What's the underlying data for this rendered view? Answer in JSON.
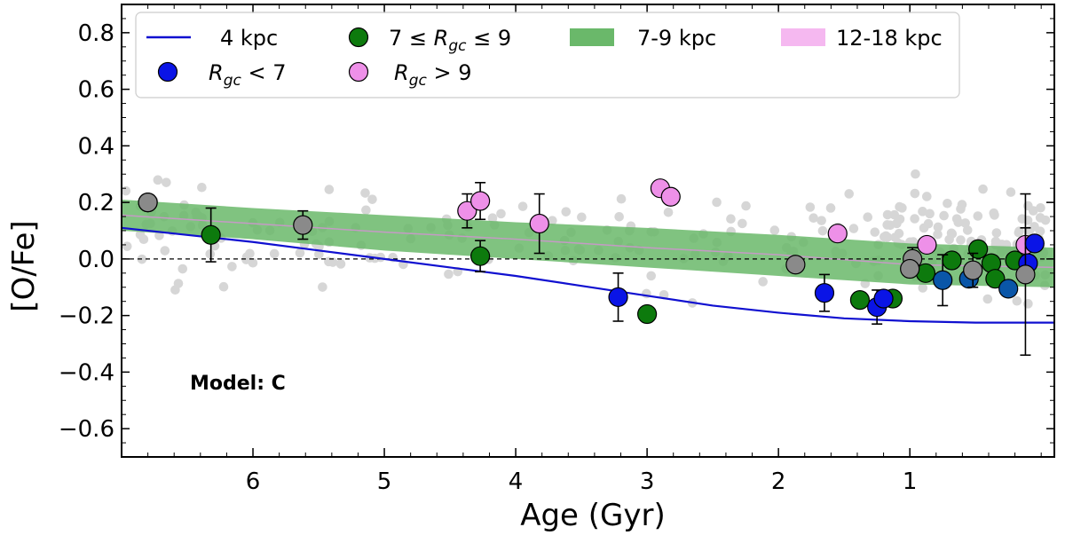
{
  "chart_data": {
    "type": "scatter",
    "xlabel": "Age (Gyr)",
    "ylabel": "[O/Fe]",
    "xlim": [
      7.0,
      -0.1
    ],
    "ylim": [
      -0.7,
      0.9
    ],
    "x_ticks": [
      6,
      5,
      4,
      3,
      2,
      1
    ],
    "x_tick_labels": [
      "6",
      "5",
      "4",
      "3",
      "2",
      "1"
    ],
    "y_ticks": [
      0.8,
      0.6,
      0.4,
      0.2,
      0.0,
      -0.2,
      -0.4,
      -0.6
    ],
    "y_tick_labels": [
      "0.8",
      "0.6",
      "0.4",
      "0.2",
      "0.0",
      "−0.2",
      "−0.4",
      "−0.6"
    ],
    "annotation": "Model: C",
    "reference_line_y": 0.0,
    "legend": {
      "placement": "top",
      "line_4kpc": "4 kpc",
      "inner": "7 ≤ R",
      "inner_suffix": " ≤ 9",
      "band_7_9": "7-9 kpc",
      "band_12_18": "12-18 kpc",
      "lt7_suffix": " < 7",
      "gt9_suffix": " > 9",
      "r_symbol": "R",
      "r_sub": "gc"
    },
    "colors": {
      "line_4kpc": "#1010d0",
      "band_7_9": "#6ab86a",
      "band_7_9_center": "#c59ac5",
      "band_12_18": "#f5b8f0",
      "lt7": "#0a14e6",
      "lt7_alt": "#0a56a8",
      "inner": "#0d7a0d",
      "gt9": "#ee90e8",
      "grey_cluster": "#8a8a8a",
      "background_stars": "#d6d6d6"
    },
    "line_4kpc": {
      "x": [
        7.0,
        6.5,
        6.0,
        5.5,
        5.0,
        4.5,
        4.0,
        3.5,
        3.0,
        2.5,
        2.0,
        1.5,
        1.0,
        0.5,
        -0.1
      ],
      "y": [
        0.11,
        0.085,
        0.06,
        0.03,
        0.0,
        -0.03,
        -0.06,
        -0.095,
        -0.13,
        -0.165,
        -0.19,
        -0.21,
        -0.22,
        -0.225,
        -0.225
      ]
    },
    "band_7_9": {
      "x": [
        7.0,
        6.0,
        5.0,
        4.0,
        3.0,
        2.0,
        1.0,
        -0.1
      ],
      "upper": [
        0.21,
        0.18,
        0.155,
        0.13,
        0.11,
        0.085,
        0.055,
        0.04
      ],
      "lower": [
        0.1,
        0.07,
        0.03,
        0.0,
        -0.03,
        -0.06,
        -0.09,
        -0.1
      ],
      "center": [
        0.155,
        0.125,
        0.095,
        0.07,
        0.04,
        0.015,
        -0.02,
        -0.03
      ]
    },
    "series_lt7": [
      {
        "x": 3.22,
        "y": -0.135,
        "err": 0.085
      },
      {
        "x": 1.65,
        "y": -0.12,
        "err": 0.065
      },
      {
        "x": 1.25,
        "y": -0.17,
        "err": 0.06
      },
      {
        "x": 1.2,
        "y": -0.14,
        "err": 0.0
      },
      {
        "x": 0.05,
        "y": 0.055,
        "err": 0.0
      },
      {
        "x": 0.1,
        "y": -0.015,
        "err": 0.0
      }
    ],
    "series_lt7_alt": [
      {
        "x": 0.75,
        "y": -0.075,
        "err": 0.09
      },
      {
        "x": 0.55,
        "y": -0.07,
        "err": 0.0
      },
      {
        "x": 0.25,
        "y": -0.105,
        "err": 0.0
      }
    ],
    "series_inner": [
      {
        "x": 6.32,
        "y": 0.085,
        "err": 0.095
      },
      {
        "x": 4.27,
        "y": 0.01,
        "err": 0.055
      },
      {
        "x": 3.0,
        "y": -0.195,
        "err": 0.0
      },
      {
        "x": 1.38,
        "y": -0.145,
        "err": 0.0
      },
      {
        "x": 1.13,
        "y": -0.14,
        "err": 0.0
      },
      {
        "x": 0.88,
        "y": -0.05,
        "err": 0.0
      },
      {
        "x": 0.68,
        "y": -0.005,
        "err": 0.0
      },
      {
        "x": 0.48,
        "y": 0.035,
        "err": 0.0
      },
      {
        "x": 0.38,
        "y": -0.015,
        "err": 0.0
      },
      {
        "x": 0.35,
        "y": -0.07,
        "err": 0.0
      },
      {
        "x": 0.2,
        "y": -0.005,
        "err": 0.0
      }
    ],
    "series_gt9": [
      {
        "x": 6.8,
        "y": 0.2,
        "err": 0.0
      },
      {
        "x": 4.37,
        "y": 0.17,
        "err": 0.06
      },
      {
        "x": 4.27,
        "y": 0.205,
        "err": 0.065
      },
      {
        "x": 3.82,
        "y": 0.125,
        "err": 0.105
      },
      {
        "x": 2.9,
        "y": 0.25,
        "err": 0.0
      },
      {
        "x": 2.82,
        "y": 0.22,
        "err": 0.0
      },
      {
        "x": 1.55,
        "y": 0.09,
        "err": 0.0
      },
      {
        "x": 0.87,
        "y": 0.05,
        "err": 0.0
      },
      {
        "x": 0.12,
        "y": 0.05,
        "err": 0.06
      }
    ],
    "series_grey": [
      {
        "x": 6.8,
        "y": 0.2,
        "err": 0.0
      },
      {
        "x": 5.62,
        "y": 0.12,
        "err": 0.05
      },
      {
        "x": 1.87,
        "y": -0.02,
        "err": 0.0
      },
      {
        "x": 0.98,
        "y": 0.0,
        "err": 0.04
      },
      {
        "x": 1.0,
        "y": -0.035,
        "err": 0.0
      },
      {
        "x": 0.52,
        "y": -0.04,
        "err": 0.06
      },
      {
        "x": 0.12,
        "y": -0.055,
        "err": 0.285
      }
    ],
    "background_seed": 20240517,
    "background_count": 260
  }
}
